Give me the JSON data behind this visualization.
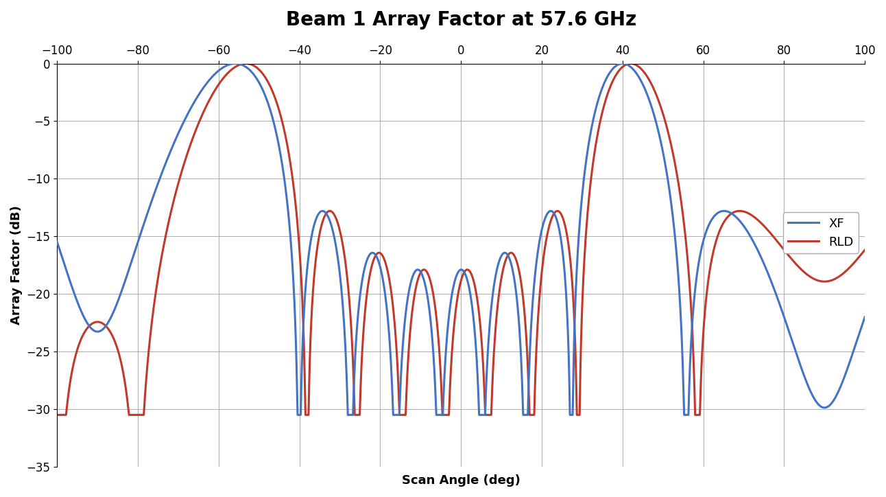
{
  "title": "Beam 1 Array Factor at 57.6 GHz",
  "xlabel": "Scan Angle (deg)",
  "ylabel": "Array Factor (dB)",
  "xlim": [
    -100,
    100
  ],
  "ylim": [
    -35,
    0
  ],
  "yticks": [
    0,
    -5,
    -10,
    -15,
    -20,
    -25,
    -30,
    -35
  ],
  "xticks": [
    -100,
    -80,
    -60,
    -40,
    -20,
    0,
    20,
    40,
    60,
    80,
    100
  ],
  "legend_labels": [
    "XF",
    "RLD"
  ],
  "xf_color": "#4472C4",
  "rld_color": "#C0392B",
  "background_color": "#FFFFFF",
  "title_fontsize": 20,
  "axis_label_fontsize": 13,
  "tick_fontsize": 12,
  "legend_fontsize": 13,
  "line_width": 2.2,
  "N_xf": 8,
  "d_xf": 0.68,
  "scan_xf": 40,
  "N_rld": 8,
  "d_rld": 0.68,
  "scan_rld": 42,
  "floor": -30.5
}
